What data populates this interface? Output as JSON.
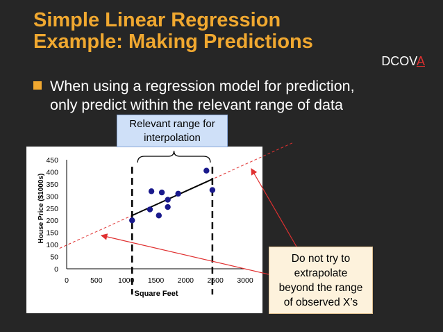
{
  "slide": {
    "title_line1": "Simple Linear Regression",
    "title_line2": "Example:  Making Predictions",
    "tag_prefix": "DCOV",
    "tag_highlight": "A",
    "bullet_line1": "When using a regression model for prediction,",
    "bullet_line2": "only predict within the relevant range of data",
    "callout_range_line1": "Relevant range for",
    "callout_range_line2": "interpolation",
    "callout_extrap_lines": [
      "Do not try to",
      "extrapolate",
      "beyond the range",
      "of observed X’s"
    ]
  },
  "colors": {
    "title": "#f0a830",
    "background": "#262626",
    "points": "#1a1a8c",
    "guide": "#e03030"
  },
  "chart_data": {
    "type": "scatter",
    "xlabel": "Square Feet",
    "ylabel": "House Price ($1000s)",
    "xlim": [
      0,
      3000
    ],
    "ylim": [
      0,
      450
    ],
    "xticks": [
      0,
      500,
      1000,
      1500,
      2000,
      2500,
      3000
    ],
    "yticks": [
      0,
      50,
      100,
      150,
      200,
      250,
      300,
      350,
      400,
      450
    ],
    "points": [
      [
        1100,
        200
      ],
      [
        1400,
        245
      ],
      [
        1425,
        320
      ],
      [
        1550,
        220
      ],
      [
        1600,
        315
      ],
      [
        1700,
        285
      ],
      [
        1700,
        255
      ],
      [
        1875,
        310
      ],
      [
        2350,
        405
      ],
      [
        2450,
        325
      ]
    ],
    "regression_line": {
      "x_start": 1100,
      "y_start": 220,
      "x_end": 2450,
      "y_end": 370
    },
    "relevant_range": [
      1100,
      2450
    ]
  }
}
